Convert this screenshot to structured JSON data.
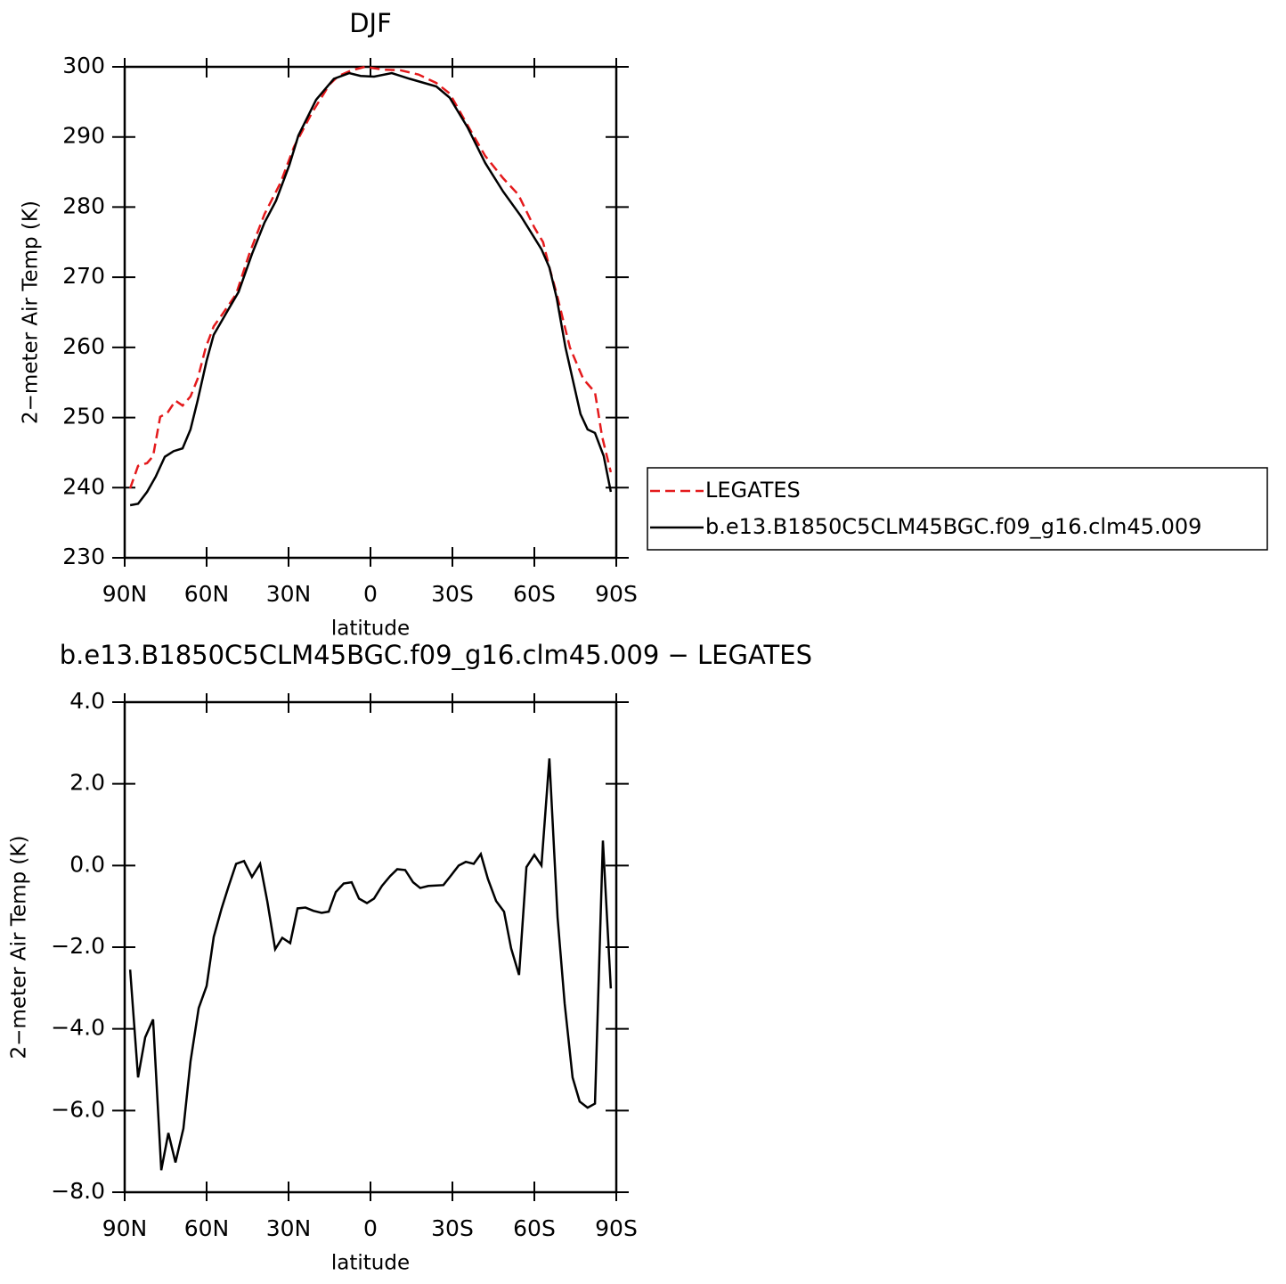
{
  "chart_data": [
    {
      "type": "line",
      "title": "DJF",
      "xlabel": "latitude",
      "ylabel": "2−meter Air Temp (K)",
      "xlim": [
        90,
        -90
      ],
      "xticks": [
        {
          "value": 90,
          "label": "90N"
        },
        {
          "value": 60,
          "label": "60N"
        },
        {
          "value": 30,
          "label": "30N"
        },
        0,
        {
          "value": -30,
          "label": "30S"
        },
        {
          "value": -60,
          "label": "60S"
        },
        {
          "value": -90,
          "label": "90S"
        }
      ],
      "ylim": [
        230,
        300
      ],
      "yticks": [
        230,
        240,
        250,
        260,
        270,
        280,
        290,
        300
      ],
      "legend": "right",
      "series": [
        {
          "name": "LEGATES",
          "color": "#e41a1c",
          "dash": true,
          "x": [
            88,
            85.1,
            81.8,
            79.6,
            77,
            74.3,
            71.4,
            68.8,
            65.9,
            63.3,
            60.3,
            57.4,
            54.1,
            49.2,
            44.4,
            38.8,
            32.9,
            28,
            21.5,
            15,
            11.7,
            6.9,
            2,
            -4.6,
            -11.1,
            -17.6,
            -24.1,
            -29,
            -35.5,
            -42,
            -48.6,
            -54.1,
            -60,
            -63.2,
            -65.5,
            -68.2,
            -73,
            -77.9,
            -82.2,
            -84.8,
            -88
          ],
          "values": [
            239.9,
            243.1,
            243.5,
            244.5,
            250.1,
            250.7,
            252.4,
            251.7,
            253,
            255.5,
            260,
            263,
            264.8,
            267.6,
            273.3,
            279,
            283.5,
            288.6,
            293.4,
            297.5,
            298.7,
            299.5,
            300,
            299.6,
            299.5,
            298.9,
            297.7,
            296.2,
            291.7,
            287.3,
            284.1,
            281.8,
            277.1,
            275,
            271.4,
            267.6,
            260,
            255.5,
            253.6,
            247.3,
            242.2
          ]
        },
        {
          "name": "b.e13.B1850C5CLM45BGC.f09_g16.clm45.009",
          "color": "#000000",
          "dash": false,
          "x": [
            88,
            85.1,
            81.8,
            78.6,
            75.3,
            72.1,
            68.8,
            65.9,
            63.3,
            60,
            57.4,
            52.5,
            48.3,
            43.4,
            38.8,
            34.6,
            29.7,
            26.4,
            19.9,
            13.4,
            7.8,
            3.6,
            -1.3,
            -7.8,
            -14.3,
            -24.1,
            -29,
            -35.5,
            -42,
            -48.6,
            -55.1,
            -62.6,
            -65.5,
            -68.2,
            -71.4,
            -74.7,
            -76.9,
            -79.5,
            -82.2,
            -85.4,
            -88
          ],
          "values": [
            237.5,
            237.7,
            239.4,
            241.6,
            244.4,
            245.2,
            245.6,
            248.3,
            252.4,
            258.1,
            261.8,
            265.1,
            267.9,
            273.3,
            277.8,
            280.9,
            286,
            290.2,
            295.3,
            298.3,
            299.1,
            298.7,
            298.6,
            299.1,
            298.3,
            297.2,
            295.6,
            291.4,
            286.3,
            282.2,
            278.7,
            274,
            271.4,
            267,
            260,
            254.3,
            250.5,
            248.3,
            247.8,
            244.5,
            239.4
          ]
        }
      ]
    },
    {
      "type": "line",
      "title": "b.e13.B1850C5CLM45BGC.f09_g16.clm45.009  −  LEGATES",
      "xlabel": "latitude",
      "ylabel": "2−meter Air Temp (K)",
      "xlim": [
        90,
        -90
      ],
      "xticks": [
        {
          "value": 90,
          "label": "90N"
        },
        {
          "value": 60,
          "label": "60N"
        },
        {
          "value": 30,
          "label": "30N"
        },
        0,
        {
          "value": -30,
          "label": "30S"
        },
        {
          "value": -60,
          "label": "60S"
        },
        {
          "value": -90,
          "label": "90S"
        }
      ],
      "ylim": [
        -8,
        4
      ],
      "yticks": [
        {
          "value": -8,
          "label": "−8.0"
        },
        {
          "value": -6,
          "label": "−6.0"
        },
        {
          "value": -4,
          "label": "−4.0"
        },
        {
          "value": -2,
          "label": "−2.0"
        },
        {
          "value": 0,
          "label": "0.0"
        },
        {
          "value": 2,
          "label": "2.0"
        },
        {
          "value": 4,
          "label": "4.0"
        }
      ],
      "series": [
        {
          "color": "#000000",
          "dash": false,
          "x": [
            88,
            85.1,
            82.5,
            79.6,
            76.6,
            74,
            71.4,
            68.5,
            65.9,
            62.9,
            60,
            57.4,
            54.5,
            51.9,
            49.2,
            46.3,
            43.4,
            40.4,
            37.8,
            34.9,
            32.3,
            29.4,
            26.7,
            23.8,
            20.9,
            17.9,
            15.3,
            12.7,
            9.8,
            6.9,
            4.2,
            1.3,
            -1.3,
            -4.2,
            -7.2,
            -9.8,
            -12.7,
            -15.6,
            -18.2,
            -21.2,
            -26.7,
            -29.3,
            -32.3,
            -34.9,
            -37.8,
            -40.4,
            -43,
            -46,
            -48.9,
            -51.5,
            -54.4,
            -57.1,
            -60,
            -62.6,
            -65.5,
            -68.5,
            -71.1,
            -74,
            -76.6,
            -79.5,
            -82.2,
            -85.1,
            -88
          ],
          "values": [
            -2.55,
            -5.19,
            -4.21,
            -3.77,
            -7.46,
            -6.55,
            -7.27,
            -6.44,
            -4.8,
            -3.49,
            -2.95,
            -1.75,
            -1.05,
            -0.5,
            0.04,
            0.11,
            -0.28,
            0.04,
            -0.87,
            -2.05,
            -1.77,
            -1.9,
            -1.05,
            -1.03,
            -1.11,
            -1.16,
            -1.13,
            -0.65,
            -0.44,
            -0.41,
            -0.81,
            -0.92,
            -0.81,
            -0.5,
            -0.26,
            -0.09,
            -0.11,
            -0.41,
            -0.55,
            -0.5,
            -0.48,
            -0.26,
            0,
            0.09,
            0.04,
            0.28,
            -0.33,
            -0.87,
            -1.13,
            -2.03,
            -2.68,
            -0.04,
            0.26,
            0,
            2.62,
            -1.27,
            -3.38,
            -5.19,
            -5.78,
            -5.93,
            -5.83,
            0.61,
            -3.01
          ]
        }
      ]
    }
  ]
}
